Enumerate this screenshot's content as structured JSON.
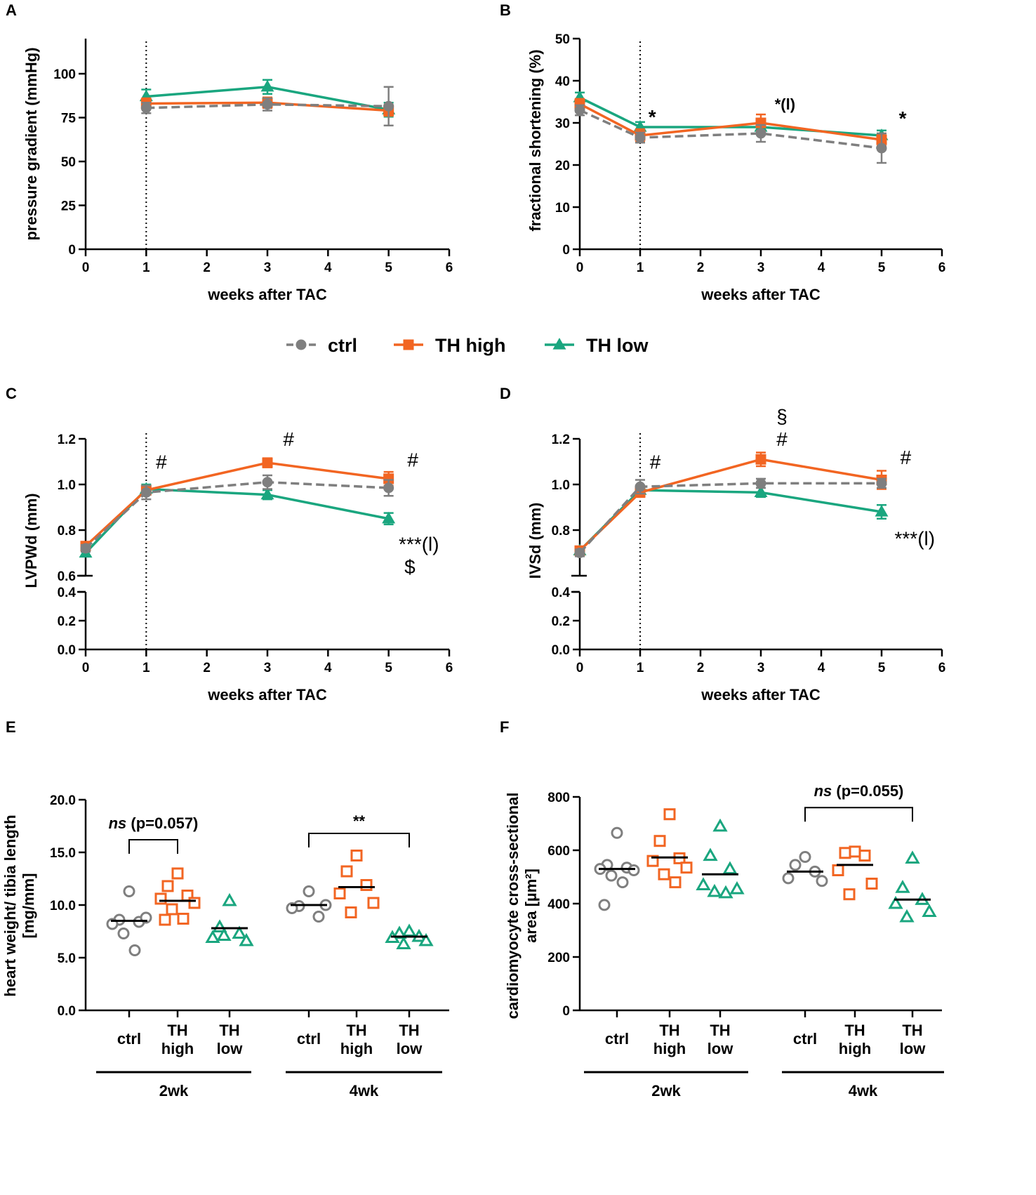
{
  "colors": {
    "ctrl": "#7f7f7f",
    "high": "#f26522",
    "low": "#1aa67f",
    "axis": "#000000"
  },
  "legend": {
    "ctrl": "ctrl",
    "high": "TH high",
    "low": "TH low"
  },
  "chart_data": [
    {
      "panel": "A",
      "type": "line",
      "xlabel": "weeks after TAC",
      "ylabel": "pressure gradient (mmHg)",
      "xlim": [
        0,
        6
      ],
      "ylim": [
        0,
        120
      ],
      "xticks": [
        0,
        1,
        2,
        3,
        4,
        5,
        6
      ],
      "yticks": [
        0,
        25,
        50,
        75,
        100
      ],
      "vline_x": 1,
      "series": [
        {
          "key": "ctrl",
          "name": "ctrl",
          "x": [
            1,
            3,
            5
          ],
          "y": [
            80.5,
            82.5,
            81.5
          ],
          "err": [
            3,
            3.5,
            11
          ]
        },
        {
          "key": "high",
          "name": "TH high",
          "x": [
            1,
            3,
            5
          ],
          "y": [
            83,
            83.5,
            79
          ],
          "err": [
            3,
            3,
            3
          ]
        },
        {
          "key": "low",
          "name": "TH low",
          "x": [
            1,
            3,
            5
          ],
          "y": [
            87,
            92.5,
            79.5
          ],
          "err": [
            4,
            4,
            4
          ]
        }
      ],
      "annotations": []
    },
    {
      "panel": "B",
      "type": "line",
      "xlabel": "weeks after TAC",
      "ylabel": "fractional shortening (%)",
      "xlim": [
        0,
        6
      ],
      "ylim": [
        0,
        50
      ],
      "xticks": [
        0,
        1,
        2,
        3,
        4,
        5,
        6
      ],
      "yticks": [
        0,
        10,
        20,
        30,
        40,
        50
      ],
      "vline_x": 1,
      "series": [
        {
          "key": "ctrl",
          "name": "ctrl",
          "x": [
            0,
            1,
            3,
            5
          ],
          "y": [
            33,
            26.5,
            27.5,
            24
          ],
          "err": [
            1.2,
            1.2,
            2,
            3.5
          ]
        },
        {
          "key": "high",
          "name": "TH high",
          "x": [
            0,
            1,
            3,
            5
          ],
          "y": [
            34.5,
            27,
            30,
            26
          ],
          "err": [
            1.2,
            1.5,
            2,
            1.5
          ]
        },
        {
          "key": "low",
          "name": "TH low",
          "x": [
            0,
            1,
            3,
            5
          ],
          "y": [
            36,
            29,
            29,
            27
          ],
          "err": [
            1.2,
            1.2,
            1.2,
            1.2
          ]
        }
      ],
      "annotations": [
        {
          "x": 1.2,
          "y": 31.5,
          "text": "*"
        },
        {
          "x": 3.4,
          "y": 34.8,
          "text": "*(l)"
        },
        {
          "x": 5.35,
          "y": 31.2,
          "text": "*"
        }
      ]
    },
    {
      "panel": "C",
      "type": "line",
      "xlabel": "weeks after TAC",
      "ylabel": "LVPWd (mm)",
      "xlim": [
        0,
        6
      ],
      "ylim_upper": [
        0.6,
        1.2
      ],
      "ylim_lower": [
        0,
        0.4
      ],
      "xticks": [
        0,
        1,
        2,
        3,
        4,
        5,
        6
      ],
      "yticks_upper": [
        0.6,
        0.8,
        1.0,
        1.2
      ],
      "yticks_lower": [
        0.0,
        0.2,
        0.4
      ],
      "vline_x": 1,
      "series": [
        {
          "key": "ctrl",
          "name": "ctrl",
          "x": [
            0,
            1,
            3,
            5
          ],
          "y": [
            0.72,
            0.965,
            1.01,
            0.985
          ],
          "err": [
            0.015,
            0.03,
            0.03,
            0.035
          ]
        },
        {
          "key": "high",
          "name": "TH high",
          "x": [
            0,
            1,
            3,
            5
          ],
          "y": [
            0.73,
            0.975,
            1.095,
            1.025
          ],
          "err": [
            0.015,
            0.02,
            0.02,
            0.03
          ]
        },
        {
          "key": "low",
          "name": "TH low",
          "x": [
            0,
            1,
            3,
            5
          ],
          "y": [
            0.7,
            0.98,
            0.955,
            0.85
          ],
          "err": [
            0.015,
            0.02,
            0.02,
            0.025
          ]
        }
      ],
      "annotations": [
        {
          "x": 1.25,
          "y": 1.1,
          "text": "#"
        },
        {
          "x": 3.35,
          "y": 1.2,
          "text": "#"
        },
        {
          "x": 5.4,
          "y": 1.11,
          "text": "#"
        },
        {
          "x": 5.5,
          "y": 0.74,
          "text": "***(l)"
        },
        {
          "x": 5.35,
          "y": 0.64,
          "text": "$"
        }
      ]
    },
    {
      "panel": "D",
      "type": "line",
      "xlabel": "weeks after TAC",
      "ylabel": "IVSd (mm)",
      "xlim": [
        0,
        6
      ],
      "ylim_upper": [
        0.6,
        1.2
      ],
      "ylim_lower": [
        0,
        0.4
      ],
      "xticks": [
        0,
        1,
        2,
        3,
        4,
        5,
        6
      ],
      "yticks_upper": [
        0.8,
        1.0,
        1.2
      ],
      "yticks_lower": [
        0.0,
        0.2,
        0.4
      ],
      "vline_x": 1,
      "series": [
        {
          "key": "ctrl",
          "name": "ctrl",
          "x": [
            0,
            1,
            3,
            5
          ],
          "y": [
            0.7,
            0.99,
            1.005,
            1.005
          ],
          "err": [
            0.015,
            0.03,
            0.02,
            0.02
          ]
        },
        {
          "key": "high",
          "name": "TH high",
          "x": [
            0,
            1,
            3,
            5
          ],
          "y": [
            0.71,
            0.965,
            1.11,
            1.02
          ],
          "err": [
            0.015,
            0.02,
            0.03,
            0.04
          ]
        },
        {
          "key": "low",
          "name": "TH low",
          "x": [
            0,
            1,
            3,
            5
          ],
          "y": [
            0.71,
            0.975,
            0.965,
            0.88
          ],
          "err": [
            0.015,
            0.02,
            0.02,
            0.03
          ]
        }
      ],
      "annotations": [
        {
          "x": 1.25,
          "y": 1.1,
          "text": "#"
        },
        {
          "x": 3.35,
          "y": 1.3,
          "text": "§"
        },
        {
          "x": 3.35,
          "y": 1.2,
          "text": "#"
        },
        {
          "x": 5.4,
          "y": 1.12,
          "text": "#"
        },
        {
          "x": 5.55,
          "y": 0.765,
          "text": "***(l)"
        }
      ]
    },
    {
      "panel": "E",
      "type": "scatter",
      "ylabel_line1": "heart weight/ tibia length",
      "ylabel_line2": "[mg/mm]",
      "ylim": [
        0,
        20
      ],
      "yticks": [
        0.0,
        5.0,
        10.0,
        15.0,
        20.0
      ],
      "groups": [
        {
          "name": "ctrl",
          "label": "ctrl",
          "key": "ctrl",
          "marker": "circle",
          "mean": 8.5,
          "values": [
            11.3,
            8.6,
            8.4,
            8.2,
            8.8,
            7.3,
            5.7
          ]
        },
        {
          "name": "TH high",
          "label": "TH\nhigh",
          "key": "high",
          "marker": "square",
          "mean": 10.4,
          "values": [
            13.0,
            11.8,
            10.9,
            10.6,
            10.2,
            9.6,
            8.7,
            8.6
          ]
        },
        {
          "name": "TH low",
          "label": "TH\nlow",
          "key": "low",
          "marker": "triangle",
          "mean": 7.8,
          "values": [
            10.4,
            7.9,
            7.3,
            6.9,
            6.6,
            7.1
          ]
        },
        {
          "name": "ctrl",
          "label": "ctrl",
          "key": "ctrl",
          "marker": "circle",
          "mean": 10.0,
          "values": [
            11.3,
            9.9,
            8.9,
            9.7,
            10.0
          ]
        },
        {
          "name": "TH high",
          "label": "TH\nhigh",
          "key": "high",
          "marker": "square",
          "mean": 11.7,
          "values": [
            14.7,
            13.2,
            11.9,
            11.1,
            10.2,
            9.3
          ]
        },
        {
          "name": "TH low",
          "label": "TH\nlow",
          "key": "low",
          "marker": "triangle",
          "mean": 7.0,
          "values": [
            7.5,
            7.3,
            7.0,
            6.9,
            6.6,
            6.3
          ]
        }
      ],
      "timepoints": [
        "2wk",
        "4wk"
      ],
      "brackets": [
        {
          "from": 0,
          "to": 1,
          "y": 16.2,
          "text_ns": "ns",
          "text": "(p=0.057)"
        },
        {
          "from": 3,
          "to": 5,
          "y": 16.8,
          "text_ns": "",
          "text": "**"
        }
      ]
    },
    {
      "panel": "F",
      "type": "scatter",
      "ylabel_line1": "cardiomyocyte cross-sectional",
      "ylabel_line2": "area [µm²]",
      "ylim": [
        0,
        800
      ],
      "yticks": [
        0,
        200,
        400,
        600,
        800
      ],
      "groups": [
        {
          "name": "ctrl",
          "label": "ctrl",
          "key": "ctrl",
          "marker": "circle",
          "mean": 530,
          "values": [
            665,
            545,
            535,
            530,
            525,
            505,
            480,
            395
          ]
        },
        {
          "name": "TH high",
          "label": "TH\nhigh",
          "key": "high",
          "marker": "square",
          "mean": 573,
          "values": [
            735,
            635,
            570,
            560,
            535,
            510,
            480
          ]
        },
        {
          "name": "TH low",
          "label": "TH\nlow",
          "key": "low",
          "marker": "triangle",
          "mean": 510,
          "values": [
            690,
            580,
            530,
            470,
            455,
            445,
            440
          ]
        },
        {
          "name": "ctrl",
          "label": "ctrl",
          "key": "ctrl",
          "marker": "circle",
          "mean": 520,
          "values": [
            575,
            545,
            520,
            495,
            485
          ]
        },
        {
          "name": "TH high",
          "label": "TH\nhigh",
          "key": "high",
          "marker": "square",
          "mean": 545,
          "values": [
            595,
            590,
            580,
            525,
            475,
            435
          ]
        },
        {
          "name": "TH low",
          "label": "TH\nlow",
          "key": "low",
          "marker": "triangle",
          "mean": 415,
          "values": [
            570,
            460,
            415,
            400,
            370,
            350
          ]
        }
      ],
      "timepoints": [
        "2wk",
        "4wk"
      ],
      "brackets": [
        {
          "from": 3,
          "to": 5,
          "y": 760,
          "text_ns": "ns",
          "text": "(p=0.055)"
        }
      ]
    }
  ]
}
